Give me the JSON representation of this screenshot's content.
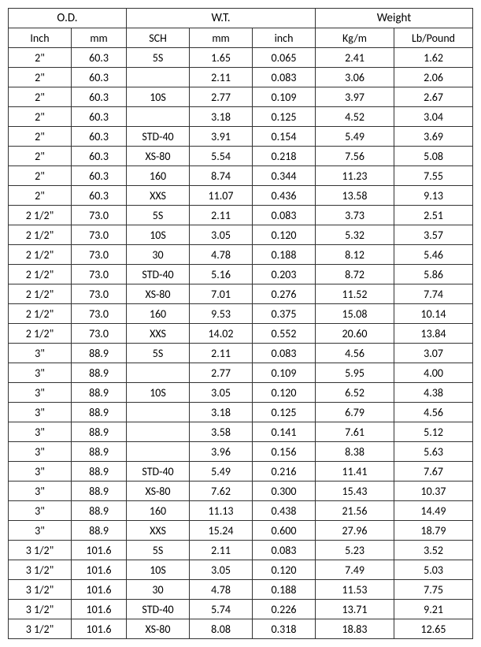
{
  "headers": {
    "group": {
      "od": "O.D.",
      "wt": "W.T.",
      "weight": "Weight"
    },
    "sub": {
      "inch": "Inch",
      "mm": "mm",
      "sch": "SCH",
      "wt_mm": "mm",
      "wt_inch": "inch",
      "kgm": "Kg/m",
      "lb": "Lb/Pound"
    }
  },
  "columns": [
    "inch",
    "mm",
    "sch",
    "wt_mm",
    "wt_inch",
    "kgm",
    "lb"
  ],
  "col_widths": [
    "80px",
    "70px",
    "80px",
    "80px",
    "80px",
    "100px",
    "100px"
  ],
  "rows": [
    {
      "inch": "2\"",
      "mm": "60.3",
      "sch": "5S",
      "wt_mm": "1.65",
      "wt_inch": "0.065",
      "kgm": "2.41",
      "lb": "1.62"
    },
    {
      "inch": "2\"",
      "mm": "60.3",
      "sch": "",
      "wt_mm": "2.11",
      "wt_inch": "0.083",
      "kgm": "3.06",
      "lb": "2.06"
    },
    {
      "inch": "2\"",
      "mm": "60.3",
      "sch": "10S",
      "wt_mm": "2.77",
      "wt_inch": "0.109",
      "kgm": "3.97",
      "lb": "2.67"
    },
    {
      "inch": "2\"",
      "mm": "60.3",
      "sch": "",
      "wt_mm": "3.18",
      "wt_inch": "0.125",
      "kgm": "4.52",
      "lb": "3.04"
    },
    {
      "inch": "2\"",
      "mm": "60.3",
      "sch": "STD-40",
      "wt_mm": "3.91",
      "wt_inch": "0.154",
      "kgm": "5.49",
      "lb": "3.69"
    },
    {
      "inch": "2\"",
      "mm": "60.3",
      "sch": "XS-80",
      "wt_mm": "5.54",
      "wt_inch": "0.218",
      "kgm": "7.56",
      "lb": "5.08"
    },
    {
      "inch": "2\"",
      "mm": "60.3",
      "sch": "160",
      "wt_mm": "8.74",
      "wt_inch": "0.344",
      "kgm": "11.23",
      "lb": "7.55"
    },
    {
      "inch": "2\"",
      "mm": "60.3",
      "sch": "XXS",
      "wt_mm": "11.07",
      "wt_inch": "0.436",
      "kgm": "13.58",
      "lb": "9.13"
    },
    {
      "inch": "2 1/2\"",
      "mm": "73.0",
      "sch": "5S",
      "wt_mm": "2.11",
      "wt_inch": "0.083",
      "kgm": "3.73",
      "lb": "2.51"
    },
    {
      "inch": "2 1/2\"",
      "mm": "73.0",
      "sch": "10S",
      "wt_mm": "3.05",
      "wt_inch": "0.120",
      "kgm": "5.32",
      "lb": "3.57"
    },
    {
      "inch": "2 1/2\"",
      "mm": "73.0",
      "sch": "30",
      "wt_mm": "4.78",
      "wt_inch": "0.188",
      "kgm": "8.12",
      "lb": "5.46"
    },
    {
      "inch": "2 1/2\"",
      "mm": "73.0",
      "sch": "STD-40",
      "wt_mm": "5.16",
      "wt_inch": "0.203",
      "kgm": "8.72",
      "lb": "5.86"
    },
    {
      "inch": "2 1/2\"",
      "mm": "73.0",
      "sch": "XS-80",
      "wt_mm": "7.01",
      "wt_inch": "0.276",
      "kgm": "11.52",
      "lb": "7.74"
    },
    {
      "inch": "2 1/2\"",
      "mm": "73.0",
      "sch": "160",
      "wt_mm": "9.53",
      "wt_inch": "0.375",
      "kgm": "15.08",
      "lb": "10.14"
    },
    {
      "inch": "2 1/2\"",
      "mm": "73.0",
      "sch": "XXS",
      "wt_mm": "14.02",
      "wt_inch": "0.552",
      "kgm": "20.60",
      "lb": "13.84"
    },
    {
      "inch": "3\"",
      "mm": "88.9",
      "sch": "5S",
      "wt_mm": "2.11",
      "wt_inch": "0.083",
      "kgm": "4.56",
      "lb": "3.07"
    },
    {
      "inch": "3\"",
      "mm": "88.9",
      "sch": "",
      "wt_mm": "2.77",
      "wt_inch": "0.109",
      "kgm": "5.95",
      "lb": "4.00"
    },
    {
      "inch": "3\"",
      "mm": "88.9",
      "sch": "10S",
      "wt_mm": "3.05",
      "wt_inch": "0.120",
      "kgm": "6.52",
      "lb": "4.38"
    },
    {
      "inch": "3\"",
      "mm": "88.9",
      "sch": "",
      "wt_mm": "3.18",
      "wt_inch": "0.125",
      "kgm": "6.79",
      "lb": "4.56"
    },
    {
      "inch": "3\"",
      "mm": "88.9",
      "sch": "",
      "wt_mm": "3.58",
      "wt_inch": "0.141",
      "kgm": "7.61",
      "lb": "5.12"
    },
    {
      "inch": "3\"",
      "mm": "88.9",
      "sch": "",
      "wt_mm": "3.96",
      "wt_inch": "0.156",
      "kgm": "8.38",
      "lb": "5.63"
    },
    {
      "inch": "3\"",
      "mm": "88.9",
      "sch": "STD-40",
      "wt_mm": "5.49",
      "wt_inch": "0.216",
      "kgm": "11.41",
      "lb": "7.67"
    },
    {
      "inch": "3\"",
      "mm": "88.9",
      "sch": "XS-80",
      "wt_mm": "7.62",
      "wt_inch": "0.300",
      "kgm": "15.43",
      "lb": "10.37"
    },
    {
      "inch": "3\"",
      "mm": "88.9",
      "sch": "160",
      "wt_mm": "11.13",
      "wt_inch": "0.438",
      "kgm": "21.56",
      "lb": "14.49"
    },
    {
      "inch": "3\"",
      "mm": "88.9",
      "sch": "XXS",
      "wt_mm": "15.24",
      "wt_inch": "0.600",
      "kgm": "27.96",
      "lb": "18.79"
    },
    {
      "inch": "3 1/2\"",
      "mm": "101.6",
      "sch": "5S",
      "wt_mm": "2.11",
      "wt_inch": "0.083",
      "kgm": "5.23",
      "lb": "3.52"
    },
    {
      "inch": "3 1/2\"",
      "mm": "101.6",
      "sch": "10S",
      "wt_mm": "3.05",
      "wt_inch": "0.120",
      "kgm": "7.49",
      "lb": "5.03"
    },
    {
      "inch": "3 1/2\"",
      "mm": "101.6",
      "sch": "30",
      "wt_mm": "4.78",
      "wt_inch": "0.188",
      "kgm": "11.53",
      "lb": "7.75"
    },
    {
      "inch": "3 1/2\"",
      "mm": "101.6",
      "sch": "STD-40",
      "wt_mm": "5.74",
      "wt_inch": "0.226",
      "kgm": "13.71",
      "lb": "9.21"
    },
    {
      "inch": "3 1/2\"",
      "mm": "101.6",
      "sch": "XS-80",
      "wt_mm": "8.08",
      "wt_inch": "0.318",
      "kgm": "18.83",
      "lb": "12.65"
    }
  ]
}
